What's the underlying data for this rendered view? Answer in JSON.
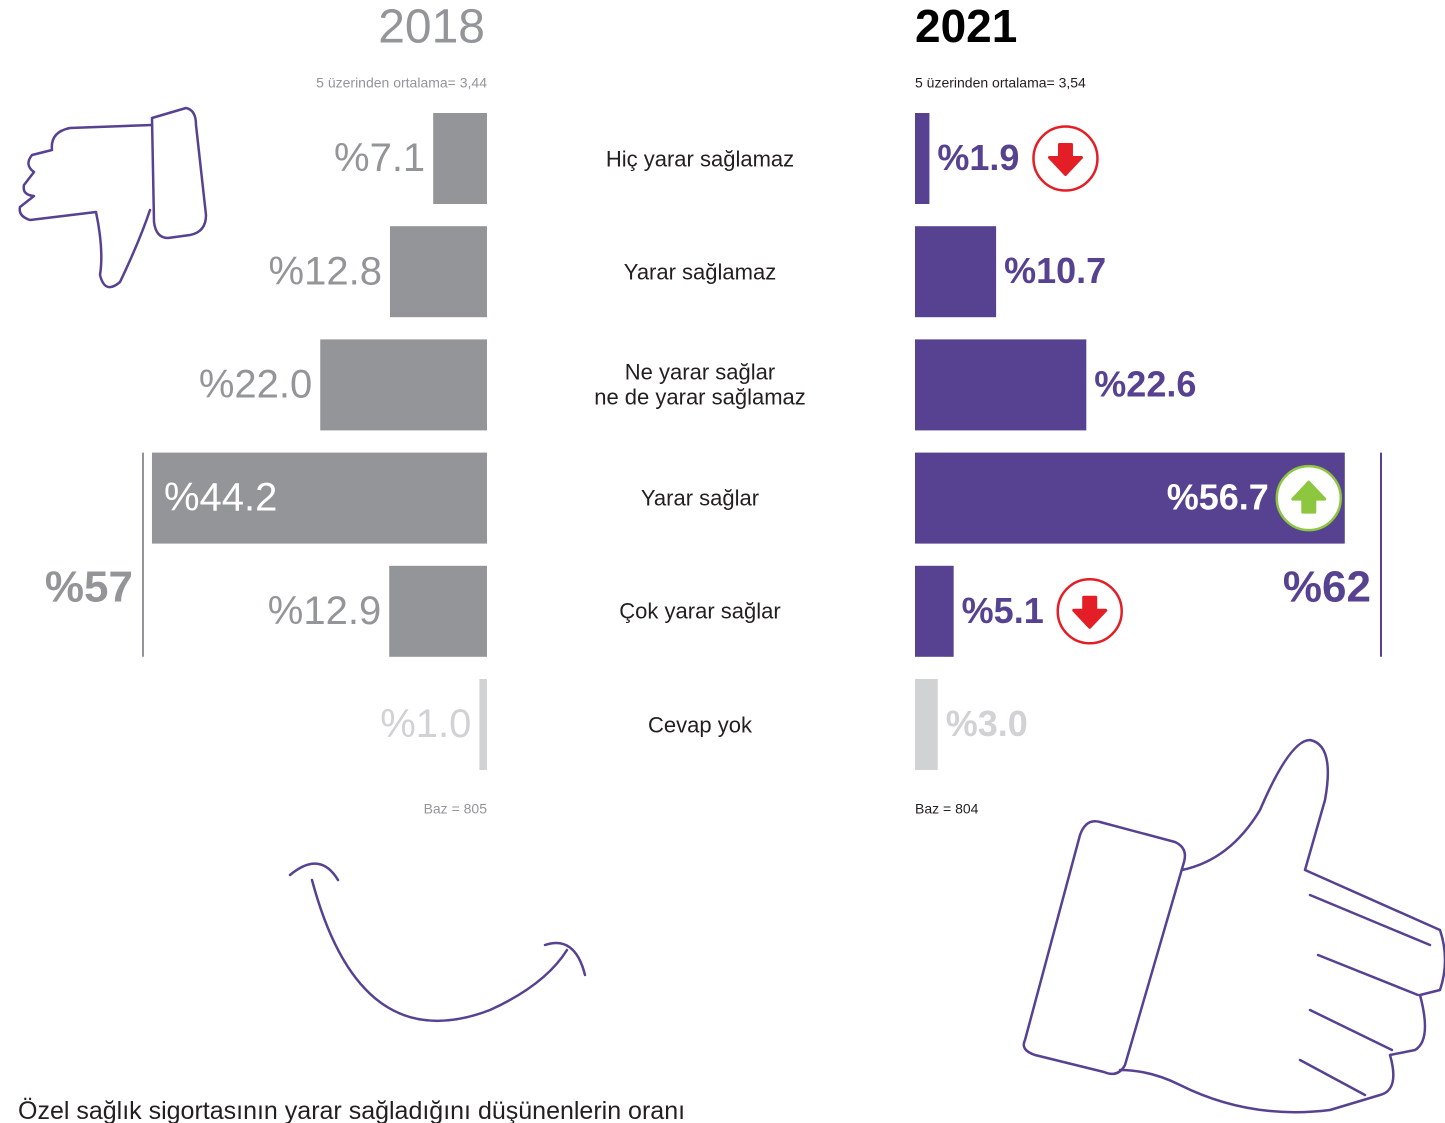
{
  "categories": [
    "Hiç yarar sağlamaz",
    "Yarar sağlamaz",
    "Ne yarar sağlar\nne de yarar sağlamaz",
    "Yarar sağlar",
    "Çok yarar sağlar",
    "Cevap yok"
  ],
  "chart_data": [
    {
      "type": "bar",
      "title": "2018",
      "subtitle": "5 üzerinden ortalama= 3,44",
      "direction": "left",
      "values": [
        7.1,
        12.8,
        22.0,
        44.2,
        12.9,
        1.0
      ],
      "value_labels": [
        "%7.1",
        "%12.8",
        "%22.0",
        "%44.2",
        "%12.9",
        "%1.0"
      ],
      "colors": [
        "#939598",
        "#939598",
        "#939598",
        "#939598",
        "#939598",
        "#d1d2d4"
      ],
      "label_color": "#939598",
      "bracket": {
        "value": 57,
        "label": "%57"
      },
      "base": "Baz = 805"
    },
    {
      "type": "bar",
      "title": "2021",
      "subtitle": "5 üzerinden ortalama= 3,54",
      "direction": "right",
      "values": [
        1.9,
        10.7,
        22.6,
        56.7,
        5.1,
        3.0
      ],
      "value_labels": [
        "%1.9",
        "%10.7",
        "%22.6",
        "%56.7",
        "%5.1",
        "%3.0"
      ],
      "colors": [
        "#574191",
        "#574191",
        "#574191",
        "#574191",
        "#574191",
        "#d1d2d4"
      ],
      "label_color": "#574191",
      "trend": [
        "down",
        null,
        null,
        "up",
        "down",
        null
      ],
      "bracket": {
        "value": 62,
        "label": "%62"
      },
      "base": "Baz = 804"
    }
  ],
  "caption": "Özel sağlık sigortasının yarar sağladığını düşünenlerin oranı"
}
